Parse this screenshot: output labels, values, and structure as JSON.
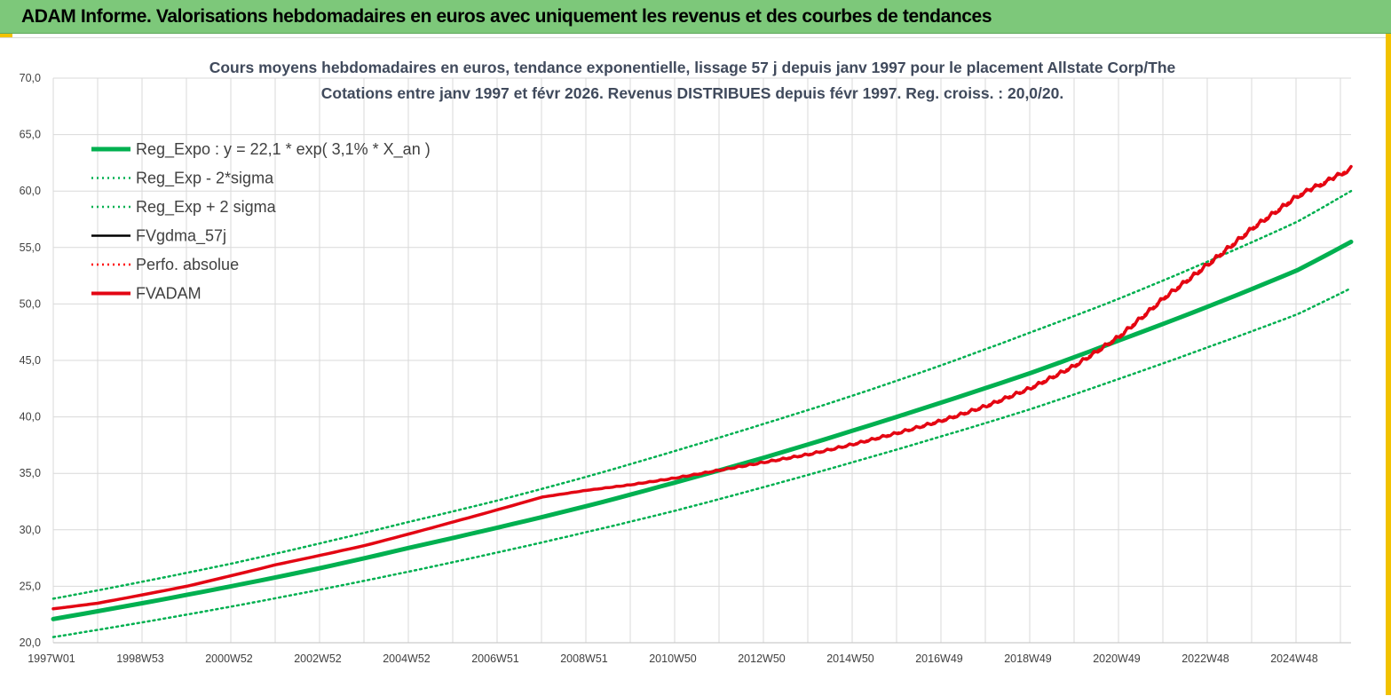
{
  "banner": {
    "title": "ADAM Informe. Valorisations hebdomadaires en euros avec uniquement les revenus et des courbes de tendances"
  },
  "colors": {
    "banner_bg": "#7dc87a",
    "reg_expo": "#00b050",
    "fvgdma": "#000000",
    "perfo": "#ff0000",
    "fvadam": "#e30613",
    "grid": "#d9d9d9"
  },
  "chart_data": {
    "type": "line",
    "title_lines": [
      "Cours moyens hebdomadaires en euros, tendance exponentielle, lissage 57 j depuis janv 1997 pour le placement Allstate Corp/The",
      "Cotations entre janv 1997 et févr 2026. Revenus DISTRIBUES depuis févr 1997. Reg. croiss. : 20,0/20."
    ],
    "xlabel": "",
    "ylabel": "",
    "ylim": [
      20,
      70
    ],
    "yticks": [
      "20,0",
      "25,0",
      "30,0",
      "35,0",
      "40,0",
      "45,0",
      "50,0",
      "55,0",
      "60,0",
      "65,0",
      "70,0"
    ],
    "x_ticks": [
      "1997W01",
      "1998W53",
      "2000W52",
      "2002W52",
      "2004W52",
      "2006W51",
      "2008W51",
      "2010W50",
      "2012W50",
      "2014W50",
      "2016W49",
      "2018W49",
      "2020W49",
      "2022W48",
      "2024W48"
    ],
    "x_range_years": [
      1997.0,
      2026.2
    ],
    "grid": true,
    "legend_position": "top-left",
    "series": [
      {
        "name": "Reg_Expo : y = 22,1 * exp( 3,1% *  X_an )",
        "style": "solid-thick",
        "color": "#00b050",
        "x": [
          1997,
          1999,
          2001,
          2003,
          2005,
          2007,
          2009,
          2011,
          2013,
          2015,
          2017,
          2019,
          2021,
          2023,
          2025,
          2026.2
        ],
        "y": [
          22.1,
          23.5,
          25.0,
          26.6,
          28.4,
          30.2,
          32.1,
          34.2,
          36.4,
          38.8,
          41.3,
          43.9,
          46.8,
          49.8,
          53.0,
          55.5
        ]
      },
      {
        "name": "Reg_Exp - 2*sigma",
        "style": "dotted",
        "color": "#00b050",
        "x": [
          1997,
          1999,
          2001,
          2003,
          2005,
          2007,
          2009,
          2011,
          2013,
          2015,
          2017,
          2019,
          2021,
          2023,
          2025,
          2026.2
        ],
        "y": [
          20.5,
          21.8,
          23.2,
          24.7,
          26.3,
          28.0,
          29.8,
          31.7,
          33.8,
          36.0,
          38.3,
          40.7,
          43.4,
          46.2,
          49.1,
          51.4
        ]
      },
      {
        "name": "Reg_Exp + 2 sigma",
        "style": "dotted",
        "color": "#00b050",
        "x": [
          1997,
          1999,
          2001,
          2003,
          2005,
          2007,
          2009,
          2011,
          2013,
          2015,
          2017,
          2019,
          2021,
          2023,
          2025,
          2026.2
        ],
        "y": [
          23.9,
          25.4,
          27.0,
          28.8,
          30.7,
          32.6,
          34.7,
          37.0,
          39.4,
          41.9,
          44.6,
          47.5,
          50.5,
          53.8,
          57.3,
          60.0
        ]
      },
      {
        "name": "FVgdma_57j",
        "style": "solid",
        "color": "#000000",
        "x": [
          1997,
          1998,
          2000,
          2002,
          2004,
          2006,
          2008,
          2009,
          2010,
          2011,
          2012,
          2013,
          2014,
          2015,
          2016,
          2017,
          2018,
          2019,
          2020,
          2021,
          2022,
          2023,
          2024,
          2025,
          2026.2
        ],
        "y": [
          23.0,
          23.5,
          25.0,
          26.9,
          28.6,
          30.7,
          32.9,
          33.5,
          34.0,
          34.6,
          35.3,
          36.0,
          36.7,
          37.6,
          38.6,
          39.7,
          41.0,
          42.6,
          44.6,
          47.2,
          50.6,
          53.6,
          56.8,
          59.6,
          62.0
        ]
      },
      {
        "name": "Perfo. absolue",
        "style": "dotted",
        "color": "#ff0000",
        "x": [
          1997,
          1998,
          2000,
          2002,
          2004,
          2006,
          2008,
          2009,
          2010,
          2011,
          2012,
          2013,
          2014,
          2015,
          2016,
          2017,
          2018,
          2019,
          2020,
          2021,
          2022,
          2023,
          2024,
          2025,
          2026.2
        ],
        "y": [
          23.0,
          23.5,
          25.0,
          26.9,
          28.6,
          30.7,
          32.9,
          33.5,
          34.0,
          34.6,
          35.3,
          36.0,
          36.7,
          37.6,
          38.6,
          39.7,
          41.0,
          42.6,
          44.6,
          47.2,
          50.6,
          53.6,
          56.8,
          59.6,
          62.0
        ]
      },
      {
        "name": "FVADAM",
        "style": "solid-thick",
        "color": "#e30613",
        "x": [
          1997,
          1998,
          2000,
          2002,
          2004,
          2006,
          2008,
          2009,
          2010,
          2011,
          2012,
          2013,
          2014,
          2015,
          2016,
          2017,
          2018,
          2019,
          2020,
          2021,
          2022,
          2023,
          2024,
          2025,
          2026.2
        ],
        "y": [
          23.0,
          23.5,
          25.0,
          26.9,
          28.6,
          30.7,
          32.9,
          33.5,
          34.0,
          34.6,
          35.3,
          36.0,
          36.7,
          37.6,
          38.6,
          39.7,
          41.0,
          42.6,
          44.6,
          47.2,
          50.6,
          53.6,
          56.8,
          59.6,
          62.0
        ]
      }
    ]
  }
}
